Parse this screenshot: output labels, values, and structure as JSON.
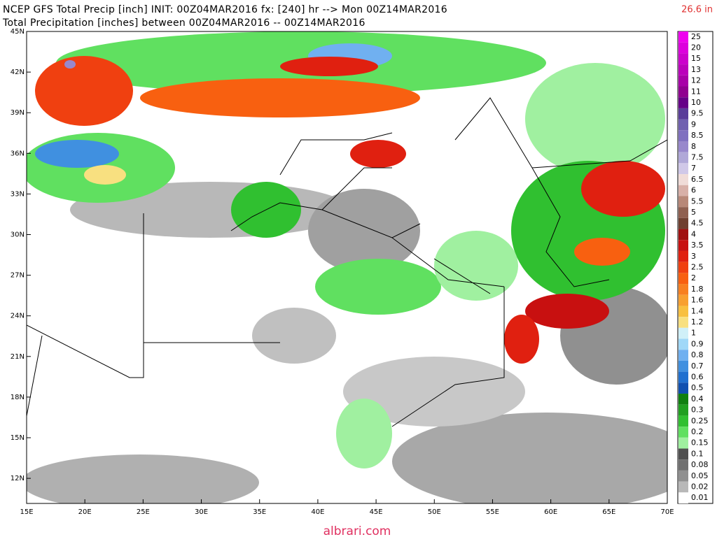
{
  "header": {
    "line1": "NCEP GFS Total Precip [inch] INIT: 00Z04MAR2016 fx: [240] hr --> Mon 00Z14MAR2016",
    "line2": "Total Precipitation [inches] between 00Z04MAR2016 -- 00Z14MAR2016",
    "max_label": "26.6 in"
  },
  "map": {
    "lat_labels": [
      "45N",
      "42N",
      "39N",
      "36N",
      "33N",
      "30N",
      "27N",
      "24N",
      "21N",
      "18N",
      "15N",
      "12N"
    ],
    "lon_labels": [
      "15E",
      "20E",
      "25E",
      "30E",
      "35E",
      "40E",
      "45E",
      "50E",
      "55E",
      "60E",
      "65E",
      "70E"
    ]
  },
  "legend": [
    {
      "value": 25,
      "color": "#ee00ee"
    },
    {
      "value": 20,
      "color": "#dd00dd"
    },
    {
      "value": 15,
      "color": "#cc00cc"
    },
    {
      "value": 13,
      "color": "#bb00bb"
    },
    {
      "value": 12,
      "color": "#a800a8"
    },
    {
      "value": 11,
      "color": "#900090"
    },
    {
      "value": 10,
      "color": "#660088"
    },
    {
      "value": 9.5,
      "color": "#5a3d9a"
    },
    {
      "value": 9,
      "color": "#7060b0"
    },
    {
      "value": 8.5,
      "color": "#8070c0"
    },
    {
      "value": 8,
      "color": "#9888cc"
    },
    {
      "value": 7.5,
      "color": "#b0a8d8"
    },
    {
      "value": 7,
      "color": "#d0c8e8"
    },
    {
      "value": 6.5,
      "color": "#f0dcd8"
    },
    {
      "value": 6,
      "color": "#d8b0a8"
    },
    {
      "value": 5.5,
      "color": "#b88878"
    },
    {
      "value": 5,
      "color": "#906050"
    },
    {
      "value": 4.5,
      "color": "#704030"
    },
    {
      "value": 4,
      "color": "#a01010"
    },
    {
      "value": 3.5,
      "color": "#c81010"
    },
    {
      "value": 3,
      "color": "#e02010"
    },
    {
      "value": 2.5,
      "color": "#f04010"
    },
    {
      "value": 2,
      "color": "#f86010"
    },
    {
      "value": 1.8,
      "color": "#f88020"
    },
    {
      "value": 1.6,
      "color": "#f8a030"
    },
    {
      "value": 1.4,
      "color": "#f8c040"
    },
    {
      "value": 1.2,
      "color": "#f8e080"
    },
    {
      "value": 1,
      "color": "#d0f0f8"
    },
    {
      "value": 0.9,
      "color": "#a0d8f8"
    },
    {
      "value": 0.8,
      "color": "#70b0f0"
    },
    {
      "value": 0.7,
      "color": "#4090e0"
    },
    {
      "value": 0.6,
      "color": "#2070d0"
    },
    {
      "value": 0.5,
      "color": "#1050b0"
    },
    {
      "value": 0.4,
      "color": "#108010"
    },
    {
      "value": 0.3,
      "color": "#20a020"
    },
    {
      "value": 0.25,
      "color": "#30c030"
    },
    {
      "value": 0.2,
      "color": "#60e060"
    },
    {
      "value": 0.15,
      "color": "#a0f0a0"
    },
    {
      "value": 0.1,
      "color": "#505050"
    },
    {
      "value": 0.08,
      "color": "#707070"
    },
    {
      "value": 0.05,
      "color": "#909090"
    },
    {
      "value": 0.02,
      "color": "#b8b8b8"
    },
    {
      "value": 0.01,
      "color": "#ffffff"
    }
  ],
  "watermark": "albrari.com"
}
